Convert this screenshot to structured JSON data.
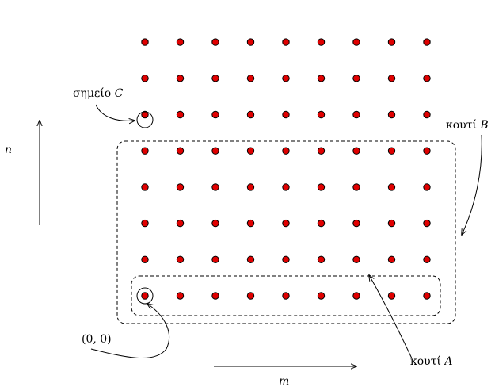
{
  "lattice": {
    "columns": 9,
    "rows": 8,
    "dot_color": "#e00000",
    "highlighted": [
      "origin",
      "point-c"
    ]
  },
  "labels": {
    "point_c_prefix": "σημείο ",
    "point_c_var": "C",
    "box_b_prefix": "κουτί ",
    "box_b_var": "B",
    "box_a_prefix": "κουτί ",
    "box_a_var": "A",
    "origin": "(0, 0)",
    "axis_n": "n",
    "axis_m": "m"
  }
}
